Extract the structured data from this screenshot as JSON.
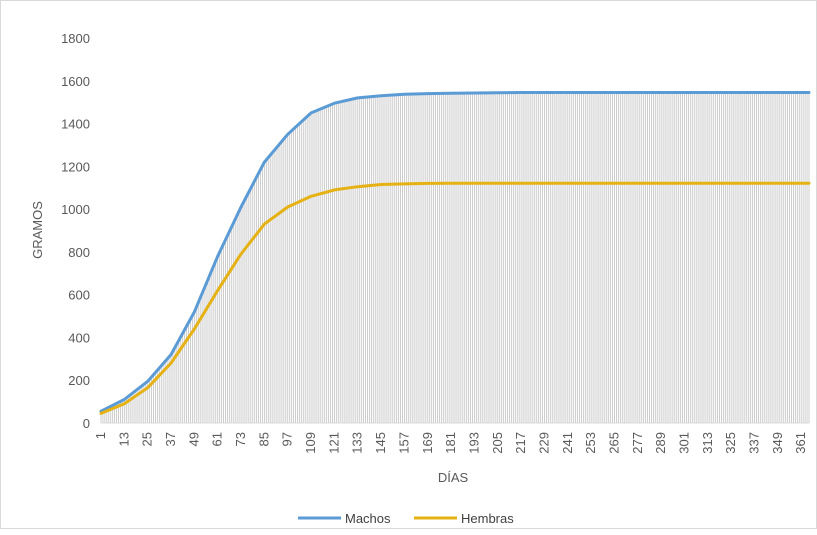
{
  "chart_data": {
    "type": "line",
    "title": "",
    "xlabel": "DÍAS",
    "ylabel": "GRAMOS",
    "xlim": [
      1,
      365
    ],
    "ylim": [
      0,
      1800
    ],
    "y_ticks": [
      0,
      200,
      400,
      600,
      800,
      1000,
      1200,
      1400,
      1600,
      1800
    ],
    "x_tick_labels": [
      "1",
      "13",
      "25",
      "37",
      "49",
      "61",
      "73",
      "85",
      "97",
      "109",
      "121",
      "133",
      "145",
      "157",
      "169",
      "181",
      "193",
      "205",
      "217",
      "229",
      "241",
      "253",
      "265",
      "277",
      "289",
      "301",
      "313",
      "325",
      "337",
      "349",
      "361"
    ],
    "daily_drop_lines": true,
    "grid": false,
    "legend_position": "bottom",
    "series": [
      {
        "name": "Machos",
        "color": "#5b9bd5",
        "x": [
          1,
          13,
          25,
          37,
          49,
          61,
          73,
          85,
          97,
          109,
          121,
          133,
          145,
          157,
          169,
          181,
          193,
          205,
          217,
          229,
          241,
          253,
          265,
          277,
          289,
          301,
          313,
          325,
          337,
          349,
          361,
          365
        ],
        "values": [
          55,
          110,
          195,
          320,
          520,
          780,
          1010,
          1220,
          1350,
          1450,
          1495,
          1520,
          1530,
          1537,
          1540,
          1542,
          1543,
          1544,
          1545,
          1545,
          1545,
          1545,
          1545,
          1545,
          1545,
          1545,
          1545,
          1545,
          1545,
          1545,
          1545,
          1545
        ]
      },
      {
        "name": "Hembras",
        "color": "#e5b113",
        "x": [
          1,
          13,
          25,
          37,
          49,
          61,
          73,
          85,
          97,
          109,
          121,
          133,
          145,
          157,
          169,
          181,
          193,
          205,
          217,
          229,
          241,
          253,
          265,
          277,
          289,
          301,
          313,
          325,
          337,
          349,
          361,
          365
        ],
        "values": [
          45,
          90,
          165,
          280,
          440,
          620,
          790,
          930,
          1010,
          1060,
          1090,
          1105,
          1115,
          1118,
          1120,
          1121,
          1121,
          1121,
          1121,
          1121,
          1121,
          1121,
          1121,
          1121,
          1121,
          1121,
          1121,
          1121,
          1121,
          1121,
          1121,
          1121
        ]
      }
    ]
  }
}
